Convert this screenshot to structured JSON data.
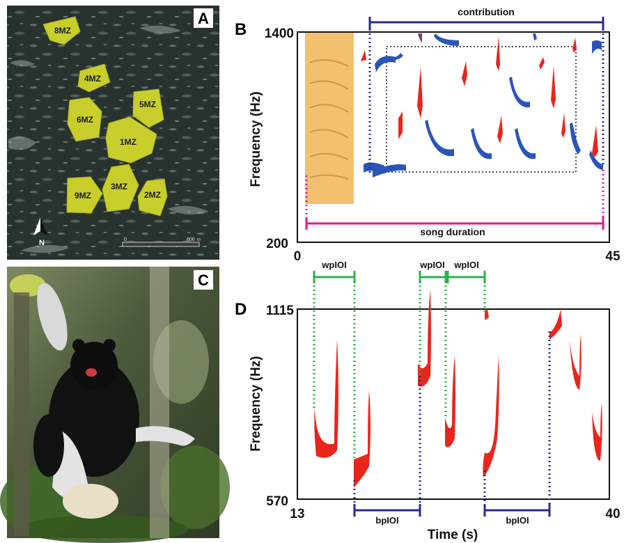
{
  "panels": {
    "A": {
      "letter": "A",
      "north_label": "N",
      "scale_min": "0",
      "scale_max": "600",
      "scale_unit": "m",
      "zones": [
        "8MZ",
        "4MZ",
        "5MZ",
        "6MZ",
        "1MZ",
        "9MZ",
        "3MZ",
        "2MZ"
      ]
    },
    "B": {
      "letter": "B",
      "y_axis_title": "Frequency (Hz)",
      "y_top": "1400",
      "y_bottom": "200",
      "x_left": "0",
      "x_right": "45",
      "contribution_label": "contribution",
      "song_duration_label": "song duration",
      "colors": {
        "red": "#e8261c",
        "blue": "#2a54b8",
        "orange": "#f2c06e",
        "magenta": "#e6198f",
        "navy": "#2a2a8c"
      }
    },
    "C": {
      "letter": "C"
    },
    "D": {
      "letter": "D",
      "y_axis_title": "Frequency (Hz)",
      "x_axis_title": "Time (s)",
      "y_top": "1115",
      "y_bottom": "570",
      "x_left": "13",
      "x_right": "40",
      "wpioi_label": "wpIOI",
      "bpioi_label": "bpIOI",
      "colors": {
        "red": "#e8261c",
        "green": "#2db24a",
        "navy": "#2a2a8c"
      }
    }
  }
}
